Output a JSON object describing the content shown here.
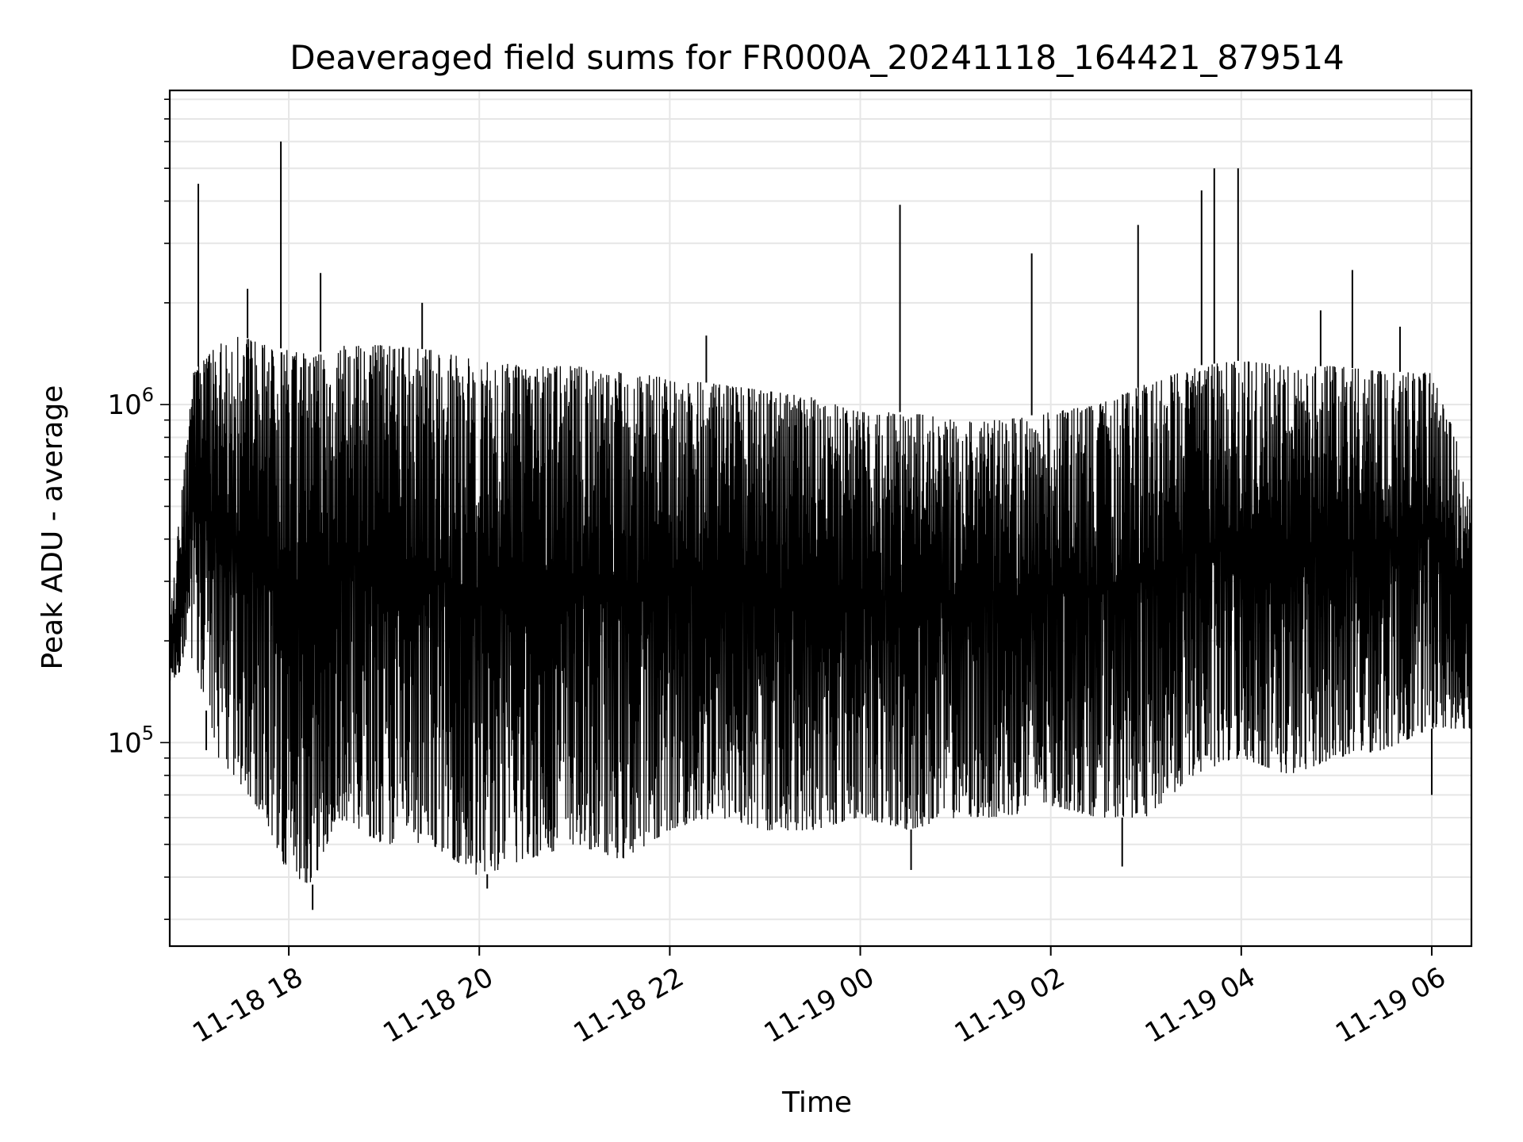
{
  "chart_data": {
    "type": "line",
    "title": "Deaveraged field sums for FR000A_20241118_164421_879514",
    "xlabel": "Time",
    "ylabel": "Peak ADU - average",
    "y_scale": "log",
    "xlim": [
      "2024-11-18 16:45",
      "2024-11-19 06:25"
    ],
    "ylim": [
      25000,
      8500000
    ],
    "grid": true,
    "line_color": "#000000",
    "x_ticks": [
      {
        "value": "2024-11-18 18:00",
        "label": "11-18 18"
      },
      {
        "value": "2024-11-18 20:00",
        "label": "11-18 20"
      },
      {
        "value": "2024-11-18 22:00",
        "label": "11-18 22"
      },
      {
        "value": "2024-11-19 00:00",
        "label": "11-19 00"
      },
      {
        "value": "2024-11-19 02:00",
        "label": "11-19 02"
      },
      {
        "value": "2024-11-19 04:00",
        "label": "11-19 04"
      },
      {
        "value": "2024-11-19 06:00",
        "label": "11-19 06"
      }
    ],
    "y_ticks": [
      {
        "value": 100000,
        "base": "10",
        "exp": "5"
      },
      {
        "value": 1000000,
        "base": "10",
        "exp": "6"
      }
    ],
    "envelope": [
      {
        "t": "2024-11-18 16:45",
        "min": 150000,
        "max": 240000
      },
      {
        "t": "2024-11-18 17:00",
        "min": 180000,
        "max": 1250000
      },
      {
        "t": "2024-11-18 17:15",
        "min": 90000,
        "max": 1500000
      },
      {
        "t": "2024-11-18 17:30",
        "min": 75000,
        "max": 1600000
      },
      {
        "t": "2024-11-18 17:45",
        "min": 60000,
        "max": 1500000
      },
      {
        "t": "2024-11-18 18:00",
        "min": 40000,
        "max": 1450000
      },
      {
        "t": "2024-11-18 18:15",
        "min": 38000,
        "max": 1400000
      },
      {
        "t": "2024-11-18 18:30",
        "min": 60000,
        "max": 1500000
      },
      {
        "t": "2024-11-18 19:00",
        "min": 50000,
        "max": 1500000
      },
      {
        "t": "2024-11-18 19:30",
        "min": 50000,
        "max": 1450000
      },
      {
        "t": "2024-11-18 20:00",
        "min": 40000,
        "max": 1350000
      },
      {
        "t": "2024-11-18 20:30",
        "min": 45000,
        "max": 1300000
      },
      {
        "t": "2024-11-18 21:00",
        "min": 50000,
        "max": 1300000
      },
      {
        "t": "2024-11-18 21:30",
        "min": 45000,
        "max": 1250000
      },
      {
        "t": "2024-11-18 22:00",
        "min": 55000,
        "max": 1200000
      },
      {
        "t": "2024-11-18 22:30",
        "min": 60000,
        "max": 1150000
      },
      {
        "t": "2024-11-18 23:00",
        "min": 55000,
        "max": 1100000
      },
      {
        "t": "2024-11-18 23:30",
        "min": 55000,
        "max": 1050000
      },
      {
        "t": "2024-11-19 00:00",
        "min": 60000,
        "max": 950000
      },
      {
        "t": "2024-11-19 00:30",
        "min": 55000,
        "max": 950000
      },
      {
        "t": "2024-11-19 01:00",
        "min": 60000,
        "max": 900000
      },
      {
        "t": "2024-11-19 01:30",
        "min": 60000,
        "max": 900000
      },
      {
        "t": "2024-11-19 02:00",
        "min": 65000,
        "max": 950000
      },
      {
        "t": "2024-11-19 02:30",
        "min": 60000,
        "max": 1000000
      },
      {
        "t": "2024-11-19 03:00",
        "min": 60000,
        "max": 1150000
      },
      {
        "t": "2024-11-19 03:30",
        "min": 80000,
        "max": 1300000
      },
      {
        "t": "2024-11-19 04:00",
        "min": 90000,
        "max": 1350000
      },
      {
        "t": "2024-11-19 04:30",
        "min": 80000,
        "max": 1300000
      },
      {
        "t": "2024-11-19 05:00",
        "min": 90000,
        "max": 1300000
      },
      {
        "t": "2024-11-19 05:30",
        "min": 95000,
        "max": 1250000
      },
      {
        "t": "2024-11-19 06:00",
        "min": 110000,
        "max": 1250000
      },
      {
        "t": "2024-11-19 06:25",
        "min": 110000,
        "max": 600000
      }
    ],
    "spikes": [
      {
        "t": "2024-11-18 17:03",
        "y": 4500000
      },
      {
        "t": "2024-11-18 17:08",
        "y": 95000
      },
      {
        "t": "2024-11-18 17:34",
        "y": 2200000
      },
      {
        "t": "2024-11-18 17:55",
        "y": 6000000
      },
      {
        "t": "2024-11-18 18:20",
        "y": 2450000
      },
      {
        "t": "2024-11-18 18:15",
        "y": 32000
      },
      {
        "t": "2024-11-18 19:24",
        "y": 2000000
      },
      {
        "t": "2024-11-18 20:05",
        "y": 37000
      },
      {
        "t": "2024-11-18 22:23",
        "y": 1600000
      },
      {
        "t": "2024-11-19 00:25",
        "y": 3900000
      },
      {
        "t": "2024-11-19 00:32",
        "y": 42000
      },
      {
        "t": "2024-11-19 01:48",
        "y": 2800000
      },
      {
        "t": "2024-11-19 02:45",
        "y": 43000
      },
      {
        "t": "2024-11-19 02:55",
        "y": 3400000
      },
      {
        "t": "2024-11-19 03:35",
        "y": 4300000
      },
      {
        "t": "2024-11-19 03:43",
        "y": 5000000
      },
      {
        "t": "2024-11-19 03:58",
        "y": 5000000
      },
      {
        "t": "2024-11-19 04:50",
        "y": 1900000
      },
      {
        "t": "2024-11-19 05:10",
        "y": 2500000
      },
      {
        "t": "2024-11-19 05:40",
        "y": 1700000
      },
      {
        "t": "2024-11-19 06:00",
        "y": 70000
      }
    ]
  }
}
